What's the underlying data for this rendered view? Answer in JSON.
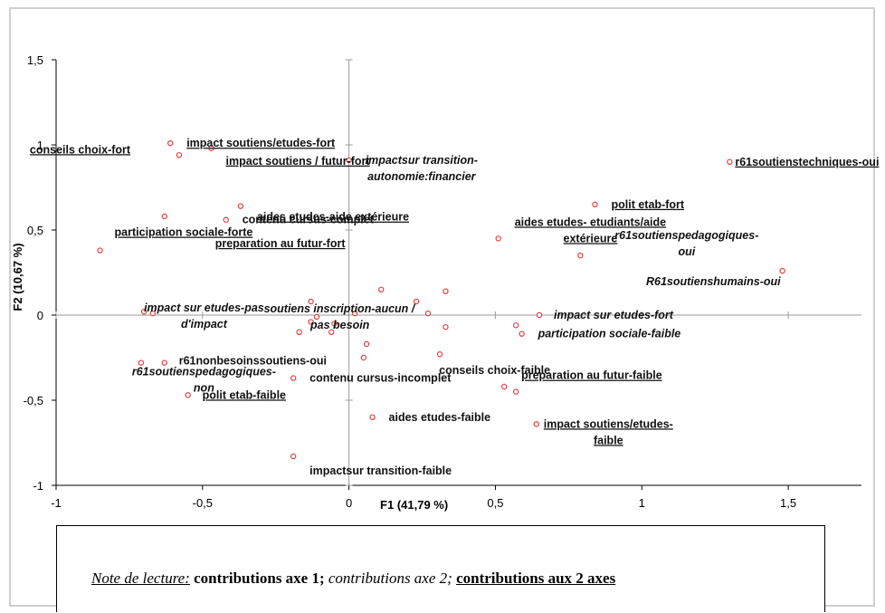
{
  "chart_data": {
    "type": "scatter",
    "title": "",
    "xlabel": "F1 (41,79 %)",
    "ylabel": "F2 (10,67 %)",
    "xlim": [
      -1,
      1.75
    ],
    "ylim": [
      -1,
      1.5
    ],
    "xticks": [
      -1,
      -0.5,
      0,
      0.5,
      1,
      1.5
    ],
    "yticks": [
      -1,
      -0.5,
      0,
      0.5,
      1,
      1.5
    ],
    "xtick_labels": [
      "-1",
      "-0,5",
      "0",
      "0,5",
      "1",
      "1,5"
    ],
    "ytick_labels": [
      "-1",
      "-0,5",
      "0",
      "0,5",
      "1",
      "1,5"
    ],
    "grid": false,
    "marker_color": "#e04040",
    "points": [
      {
        "x": 1.3,
        "y": 0.9,
        "label": [
          "r61soutienstechniques-oui"
        ],
        "style": "ul"
      },
      {
        "x": 1.48,
        "y": 0.26,
        "label": [
          "R61soutienshumains-oui"
        ],
        "style": "it"
      },
      {
        "x": 0.84,
        "y": 0.65,
        "label": [
          "polit etab-fort"
        ],
        "style": "ul"
      },
      {
        "x": 0.51,
        "y": 0.45,
        "label": [
          "aides etudes- etudiants/aide",
          "extérieure"
        ],
        "style": "ul"
      },
      {
        "x": 0.79,
        "y": 0.35,
        "label": [
          "r61soutienspedagogiques-",
          "oui"
        ],
        "style": "it"
      },
      {
        "x": 0.65,
        "y": 0.0,
        "label": [
          "impact sur etudes-fort"
        ],
        "style": "it"
      },
      {
        "x": 0.59,
        "y": -0.11,
        "label": [
          "participation sociale-faible"
        ],
        "style": "it"
      },
      {
        "x": 0.57,
        "y": -0.45,
        "label": [
          "preparation au futur-faible"
        ],
        "style": "ul"
      },
      {
        "x": 0.53,
        "y": -0.42,
        "label": [
          "conseils choix-faible"
        ],
        "style": "plain"
      },
      {
        "x": 0.57,
        "y": -0.06,
        "label": [
          ""
        ],
        "style": "plain"
      },
      {
        "x": 0.33,
        "y": 0.14,
        "label": [
          ""
        ],
        "style": "plain"
      },
      {
        "x": 0.23,
        "y": 0.08,
        "label": [
          ""
        ],
        "style": "plain"
      },
      {
        "x": 0.27,
        "y": 0.01,
        "label": [
          ""
        ],
        "style": "plain"
      },
      {
        "x": 0.33,
        "y": -0.07,
        "label": [
          ""
        ],
        "style": "plain"
      },
      {
        "x": 0.31,
        "y": -0.23,
        "label": [
          ""
        ],
        "style": "plain"
      },
      {
        "x": 0.11,
        "y": 0.15,
        "label": [
          ""
        ],
        "style": "plain"
      },
      {
        "x": 0.02,
        "y": 0.01,
        "label": [
          ""
        ],
        "style": "plain"
      },
      {
        "x": 0.06,
        "y": -0.17,
        "label": [
          ""
        ],
        "style": "plain"
      },
      {
        "x": 0.05,
        "y": -0.25,
        "label": [
          ""
        ],
        "style": "plain"
      },
      {
        "x": -0.05,
        "y": -0.05,
        "label": [
          ""
        ],
        "style": "plain"
      },
      {
        "x": -0.11,
        "y": -0.01,
        "label": [
          ""
        ],
        "style": "plain"
      },
      {
        "x": -0.13,
        "y": -0.04,
        "label": [
          ""
        ],
        "style": "plain"
      },
      {
        "x": -0.17,
        "y": -0.1,
        "label": [
          ""
        ],
        "style": "plain"
      },
      {
        "x": -0.06,
        "y": -0.1,
        "label": [
          ""
        ],
        "style": "plain"
      },
      {
        "x": 0.0,
        "y": 0.91,
        "label": [
          "impactsur transition-",
          "autonomie:financier"
        ],
        "style": "it"
      },
      {
        "x": -0.37,
        "y": 0.64,
        "label": [
          "aides etudes-aide extérieure"
        ],
        "style": "ul"
      },
      {
        "x": -0.63,
        "y": 0.58,
        "label": [
          "preparation au futur-fort"
        ],
        "style": "ul"
      },
      {
        "x": -0.42,
        "y": 0.56,
        "label": [
          "contenu cursus-complet"
        ],
        "style": "plain"
      },
      {
        "x": -0.85,
        "y": 0.38,
        "label": [
          "participation sociale-forte"
        ],
        "style": "ul"
      },
      {
        "x": -0.61,
        "y": 1.01,
        "label": [
          "impact soutiens/etudes-fort"
        ],
        "style": "ul"
      },
      {
        "x": -0.47,
        "y": 0.98,
        "label": [
          "impact soutiens / futur-fort"
        ],
        "style": "ul"
      },
      {
        "x": -0.58,
        "y": 0.94,
        "label": [
          "conseils choix-fort"
        ],
        "style": "ul"
      },
      {
        "x": -0.13,
        "y": 0.08,
        "label": [
          "soutiens inscription-aucun /",
          "pas besoin"
        ],
        "style": "it"
      },
      {
        "x": -0.7,
        "y": 0.02,
        "label": [
          "impact sur etudes-pas",
          "d'impact"
        ],
        "style": "it"
      },
      {
        "x": -0.67,
        "y": 0.01,
        "label": [
          ""
        ],
        "style": "plain"
      },
      {
        "x": -0.71,
        "y": -0.28,
        "label": [
          "r61soutienspedagogiques-",
          "non"
        ],
        "style": "it"
      },
      {
        "x": -0.63,
        "y": -0.28,
        "label": [
          "r61nonbesoinssoutiens-oui"
        ],
        "style": "plain"
      },
      {
        "x": -0.19,
        "y": -0.37,
        "label": [
          "contenu cursus-incomplet"
        ],
        "style": "plain"
      },
      {
        "x": -0.55,
        "y": -0.47,
        "label": [
          "polit etab-faible"
        ],
        "style": "ul"
      },
      {
        "x": 0.08,
        "y": -0.6,
        "label": [
          "aides etudes-faible"
        ],
        "style": "plain"
      },
      {
        "x": -0.19,
        "y": -0.83,
        "label": [
          "impactsur transition-faible"
        ],
        "style": "plain"
      },
      {
        "x": 0.64,
        "y": -0.64,
        "label": [
          "impact soutiens/etudes-",
          "faible"
        ],
        "style": "ul"
      }
    ]
  },
  "note": {
    "lead": "Note de lecture:",
    "axis1": "contributions axe 1;",
    "axis2": "contributions axe 2;",
    "both": "contributions aux 2 axes"
  }
}
